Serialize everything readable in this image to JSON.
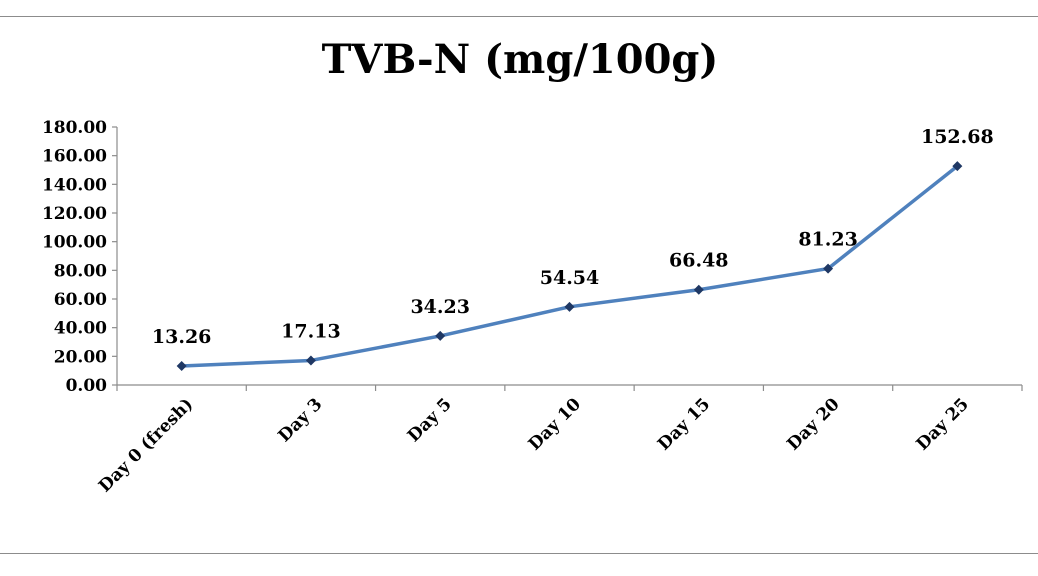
{
  "chart_data": {
    "type": "line",
    "title": "TVB-N (mg/100g)",
    "xlabel": "",
    "ylabel": "",
    "categories": [
      "Day 0 (fresh)",
      "Day 3",
      "Day 5",
      "Day 10",
      "Day 15",
      "Day 20",
      "Day 25"
    ],
    "series": [
      {
        "values": [
          13.26,
          17.13,
          34.23,
          54.54,
          66.48,
          81.23,
          152.68
        ],
        "data_labels": [
          "13.26",
          "17.13",
          "34.23",
          "54.54",
          "66.48",
          "81.23",
          "152.68"
        ]
      }
    ],
    "ylim": [
      0,
      180
    ],
    "y_ticks": [
      "0.00",
      "20.00",
      "40.00",
      "60.00",
      "80.00",
      "100.00",
      "120.00",
      "140.00",
      "160.00",
      "180.00"
    ],
    "grid": false,
    "legend": "none",
    "line_color": "#4f81bd",
    "marker_color": "#1f3864"
  }
}
